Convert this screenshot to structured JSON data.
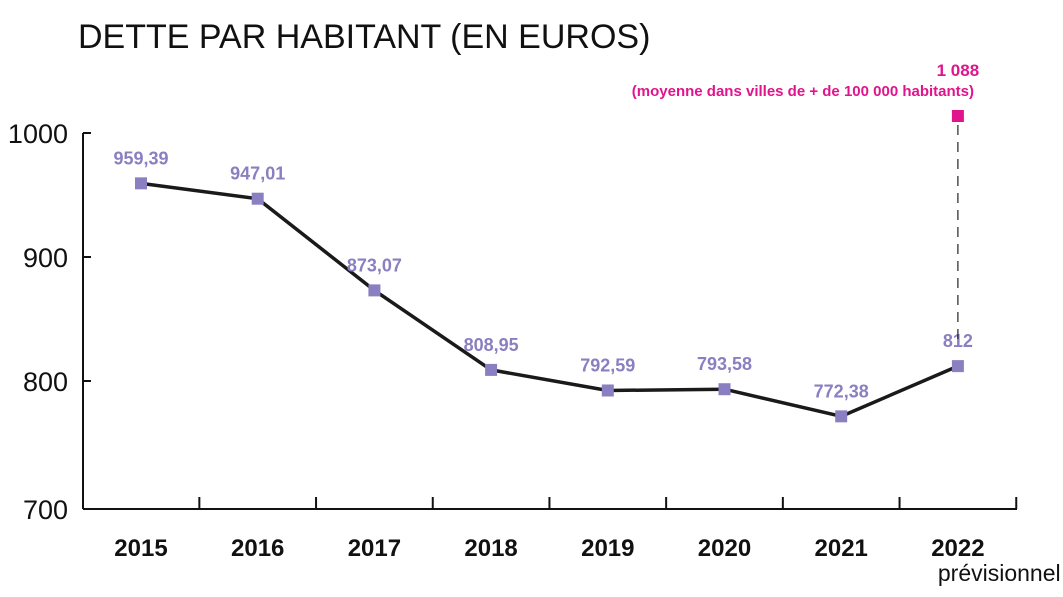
{
  "chart_data": {
    "type": "line",
    "title": "DETTE PAR HABITANT (EN EUROS)",
    "x": [
      "2015",
      "2016",
      "2017",
      "2018",
      "2019",
      "2020",
      "2021",
      "2022"
    ],
    "x_sublabels": [
      "",
      "",
      "",
      "",
      "",
      "",
      "",
      "prévisionnel"
    ],
    "series": [
      {
        "values": [
          959.39,
          947.01,
          873.07,
          808.95,
          792.59,
          793.58,
          772.38,
          812
        ],
        "value_labels": [
          "959,39",
          "947,01",
          "873,07",
          "808,95",
          "792,59",
          "793,58",
          "772,38",
          "812"
        ]
      }
    ],
    "yticks": [
      {
        "value": 700,
        "label": "700"
      },
      {
        "value": 800,
        "label": "800"
      },
      {
        "value": 900,
        "label": "900"
      },
      {
        "value": 1000,
        "label": "1000"
      }
    ],
    "ylim": [
      700,
      1000
    ],
    "grid": false,
    "annotation": {
      "category": "2022",
      "value": 1088,
      "value_label": "1 088",
      "text": "(moyenne dans villes de + de 100 000 habitants)",
      "note": "axis break: marker drawn above 1000"
    },
    "colors": {
      "line": "#1a1a1a",
      "marker": "#8a7fc0",
      "value_label": "#8a7fc0",
      "annotation": "#e0148c",
      "axis": "#111111"
    }
  }
}
